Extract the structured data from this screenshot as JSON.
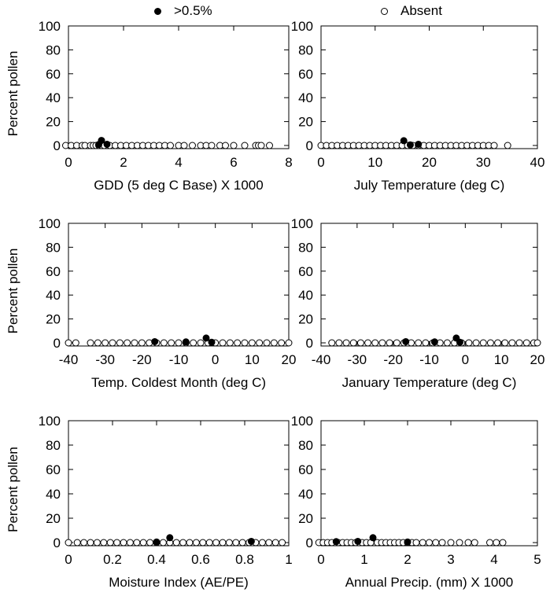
{
  "legend": {
    "filled_label": ">0.5%",
    "open_label": "Absent"
  },
  "chart_data": [
    {
      "type": "scatter",
      "xlabel": "GDD (5 deg C Base) X 1000",
      "ylabel": "Percent pollen",
      "xlim": [
        0,
        8
      ],
      "ylim": [
        0,
        100
      ],
      "xticks": [
        0,
        2,
        4,
        6,
        8
      ],
      "yticks": [
        0,
        20,
        40,
        60,
        80,
        100
      ],
      "series": [
        {
          "name": ">0.5%",
          "marker": "filled",
          "points": [
            [
              1.2,
              4.2
            ],
            [
              1.4,
              1.0
            ],
            [
              1.1,
              0.8
            ]
          ]
        },
        {
          "name": "Absent",
          "marker": "open",
          "points": [
            [
              -0.1,
              0
            ],
            [
              0.1,
              0
            ],
            [
              0.3,
              0
            ],
            [
              0.5,
              0
            ],
            [
              0.6,
              0
            ],
            [
              0.8,
              0
            ],
            [
              0.9,
              0
            ],
            [
              1.0,
              0
            ],
            [
              1.1,
              0
            ],
            [
              1.2,
              0
            ],
            [
              1.3,
              0
            ],
            [
              1.5,
              0
            ],
            [
              1.7,
              0
            ],
            [
              1.9,
              0
            ],
            [
              2.1,
              0
            ],
            [
              2.3,
              0
            ],
            [
              2.5,
              0
            ],
            [
              2.7,
              0
            ],
            [
              2.9,
              0
            ],
            [
              3.1,
              0
            ],
            [
              3.3,
              0
            ],
            [
              3.5,
              0
            ],
            [
              3.7,
              0
            ],
            [
              4.0,
              0
            ],
            [
              4.2,
              0
            ],
            [
              4.5,
              0
            ],
            [
              4.8,
              0
            ],
            [
              5.0,
              0
            ],
            [
              5.2,
              0
            ],
            [
              5.5,
              0
            ],
            [
              5.7,
              0
            ],
            [
              6.0,
              0
            ],
            [
              6.4,
              0
            ],
            [
              6.8,
              0
            ],
            [
              6.9,
              0
            ],
            [
              7.0,
              0
            ],
            [
              7.3,
              0
            ]
          ]
        }
      ]
    },
    {
      "type": "scatter",
      "xlabel": "July Temperature (deg C)",
      "ylabel": "",
      "xlim": [
        0,
        40
      ],
      "ylim": [
        0,
        100
      ],
      "xticks": [
        0,
        10,
        20,
        30,
        40
      ],
      "yticks": [
        0,
        20,
        40,
        60,
        80,
        100
      ],
      "series": [
        {
          "name": ">0.5%",
          "marker": "filled",
          "points": [
            [
              15.3,
              4.0
            ],
            [
              18.0,
              1.0
            ],
            [
              16.5,
              0.5
            ]
          ]
        },
        {
          "name": "Absent",
          "marker": "open",
          "points": [
            [
              0,
              0
            ],
            [
              1,
              0
            ],
            [
              2,
              0
            ],
            [
              3,
              0
            ],
            [
              4,
              0
            ],
            [
              5,
              0
            ],
            [
              6,
              0
            ],
            [
              7,
              0
            ],
            [
              8,
              0
            ],
            [
              9,
              0
            ],
            [
              10,
              0
            ],
            [
              11,
              0
            ],
            [
              12,
              0
            ],
            [
              13,
              0
            ],
            [
              14,
              0
            ],
            [
              15,
              0
            ],
            [
              16,
              0
            ],
            [
              17,
              0
            ],
            [
              18,
              0
            ],
            [
              19,
              0
            ],
            [
              20,
              0
            ],
            [
              21,
              0
            ],
            [
              22,
              0
            ],
            [
              23,
              0
            ],
            [
              24,
              0
            ],
            [
              25,
              0
            ],
            [
              26,
              0
            ],
            [
              27,
              0
            ],
            [
              28,
              0
            ],
            [
              29,
              0
            ],
            [
              30,
              0
            ],
            [
              31,
              0
            ],
            [
              32,
              0
            ],
            [
              34.5,
              0
            ]
          ]
        }
      ]
    },
    {
      "type": "scatter",
      "xlabel": "Temp. Coldest Month (deg C)",
      "ylabel": "Percent pollen",
      "xlim": [
        -40,
        20
      ],
      "ylim": [
        0,
        100
      ],
      "xticks": [
        -40,
        -30,
        -20,
        -10,
        0,
        10,
        20
      ],
      "yticks": [
        0,
        20,
        40,
        60,
        80,
        100
      ],
      "series": [
        {
          "name": ">0.5%",
          "marker": "filled",
          "points": [
            [
              -2.5,
              4.0
            ],
            [
              -16.5,
              1.0
            ],
            [
              -8.0,
              0.8
            ],
            [
              -1.0,
              0.5
            ]
          ]
        },
        {
          "name": "Absent",
          "marker": "open",
          "points": [
            [
              -40,
              0
            ],
            [
              -38,
              0
            ],
            [
              -34,
              0
            ],
            [
              -32,
              0
            ],
            [
              -30,
              0
            ],
            [
              -28,
              0
            ],
            [
              -26,
              0
            ],
            [
              -24,
              0
            ],
            [
              -22,
              0
            ],
            [
              -20,
              0
            ],
            [
              -18,
              0
            ],
            [
              -16,
              0
            ],
            [
              -14,
              0
            ],
            [
              -12,
              0
            ],
            [
              -10,
              0
            ],
            [
              -8,
              0
            ],
            [
              -6,
              0
            ],
            [
              -4,
              0
            ],
            [
              -2,
              0
            ],
            [
              0,
              0
            ],
            [
              2,
              0
            ],
            [
              4,
              0
            ],
            [
              6,
              0
            ],
            [
              8,
              0
            ],
            [
              10,
              0
            ],
            [
              12,
              0
            ],
            [
              14,
              0
            ],
            [
              16,
              0
            ],
            [
              18,
              0
            ],
            [
              20,
              0
            ]
          ]
        }
      ]
    },
    {
      "type": "scatter",
      "xlabel": "January Temperature (deg C)",
      "ylabel": "",
      "xlim": [
        -40,
        20
      ],
      "ylim": [
        0,
        100
      ],
      "xticks": [
        -40,
        -30,
        -20,
        -10,
        0,
        10,
        20
      ],
      "yticks": [
        0,
        20,
        40,
        60,
        80,
        100
      ],
      "series": [
        {
          "name": ">0.5%",
          "marker": "filled",
          "points": [
            [
              -2.5,
              4.0
            ],
            [
              -16.5,
              1.0
            ],
            [
              -8.5,
              0.8
            ],
            [
              -1.5,
              0.5
            ]
          ]
        },
        {
          "name": "Absent",
          "marker": "open",
          "points": [
            [
              -37,
              0
            ],
            [
              -35,
              0
            ],
            [
              -33,
              0
            ],
            [
              -31,
              0
            ],
            [
              -29,
              0
            ],
            [
              -27,
              0
            ],
            [
              -25,
              0
            ],
            [
              -23,
              0
            ],
            [
              -21,
              0
            ],
            [
              -19,
              0
            ],
            [
              -17,
              0
            ],
            [
              -15,
              0
            ],
            [
              -13,
              0
            ],
            [
              -11,
              0
            ],
            [
              -9,
              0
            ],
            [
              -7,
              0
            ],
            [
              -5,
              0
            ],
            [
              -3,
              0
            ],
            [
              -1,
              0
            ],
            [
              1,
              0
            ],
            [
              3,
              0
            ],
            [
              5,
              0
            ],
            [
              7,
              0
            ],
            [
              9,
              0
            ],
            [
              11,
              0
            ],
            [
              13,
              0
            ],
            [
              15,
              0
            ],
            [
              17,
              0
            ],
            [
              19,
              0
            ],
            [
              20,
              0
            ]
          ]
        }
      ]
    },
    {
      "type": "scatter",
      "xlabel": "Moisture Index (AE/PE)",
      "ylabel": "Percent pollen",
      "xlim": [
        0,
        1
      ],
      "ylim": [
        0,
        100
      ],
      "xticks": [
        0,
        0.2,
        0.4,
        0.6,
        0.8,
        1
      ],
      "yticks": [
        0,
        20,
        40,
        60,
        80,
        100
      ],
      "series": [
        {
          "name": ">0.5%",
          "marker": "filled",
          "points": [
            [
              0.46,
              4.0
            ],
            [
              0.83,
              1.0
            ],
            [
              0.4,
              0.5
            ]
          ]
        },
        {
          "name": "Absent",
          "marker": "open",
          "points": [
            [
              0,
              0
            ],
            [
              0.04,
              0
            ],
            [
              0.07,
              0
            ],
            [
              0.1,
              0
            ],
            [
              0.13,
              0
            ],
            [
              0.16,
              0
            ],
            [
              0.19,
              0
            ],
            [
              0.22,
              0
            ],
            [
              0.25,
              0
            ],
            [
              0.28,
              0
            ],
            [
              0.31,
              0
            ],
            [
              0.34,
              0
            ],
            [
              0.37,
              0
            ],
            [
              0.4,
              0
            ],
            [
              0.43,
              0
            ],
            [
              0.46,
              0
            ],
            [
              0.49,
              0
            ],
            [
              0.52,
              0
            ],
            [
              0.55,
              0
            ],
            [
              0.58,
              0
            ],
            [
              0.61,
              0
            ],
            [
              0.64,
              0
            ],
            [
              0.67,
              0
            ],
            [
              0.7,
              0
            ],
            [
              0.73,
              0
            ],
            [
              0.76,
              0
            ],
            [
              0.79,
              0
            ],
            [
              0.82,
              0
            ],
            [
              0.85,
              0
            ],
            [
              0.88,
              0
            ],
            [
              0.91,
              0
            ],
            [
              0.94,
              0
            ],
            [
              0.97,
              0
            ]
          ]
        }
      ]
    },
    {
      "type": "scatter",
      "xlabel": "Annual Precip. (mm) X 1000",
      "ylabel": "",
      "xlim": [
        0,
        5
      ],
      "ylim": [
        0,
        100
      ],
      "xticks": [
        0,
        1,
        2,
        3,
        4,
        5
      ],
      "yticks": [
        0,
        20,
        40,
        60,
        80,
        100
      ],
      "series": [
        {
          "name": ">0.5%",
          "marker": "filled",
          "points": [
            [
              1.2,
              4.0
            ],
            [
              0.85,
              1.0
            ],
            [
              0.35,
              0.8
            ],
            [
              2.0,
              0.5
            ]
          ]
        },
        {
          "name": "Absent",
          "marker": "open",
          "points": [
            [
              -0.05,
              0
            ],
            [
              0.05,
              0
            ],
            [
              0.15,
              0
            ],
            [
              0.25,
              0
            ],
            [
              0.4,
              0
            ],
            [
              0.5,
              0
            ],
            [
              0.6,
              0
            ],
            [
              0.7,
              0
            ],
            [
              0.8,
              0
            ],
            [
              0.95,
              0
            ],
            [
              1.05,
              0
            ],
            [
              1.15,
              0
            ],
            [
              1.3,
              0
            ],
            [
              1.4,
              0
            ],
            [
              1.5,
              0
            ],
            [
              1.6,
              0
            ],
            [
              1.7,
              0
            ],
            [
              1.8,
              0
            ],
            [
              1.9,
              0
            ],
            [
              2.0,
              0
            ],
            [
              2.1,
              0
            ],
            [
              2.2,
              0
            ],
            [
              2.35,
              0
            ],
            [
              2.5,
              0
            ],
            [
              2.65,
              0
            ],
            [
              2.8,
              0
            ],
            [
              3.0,
              0
            ],
            [
              3.2,
              0
            ],
            [
              3.4,
              0
            ],
            [
              3.55,
              0
            ],
            [
              3.9,
              0
            ],
            [
              4.05,
              0
            ],
            [
              4.2,
              0
            ]
          ]
        }
      ]
    }
  ]
}
